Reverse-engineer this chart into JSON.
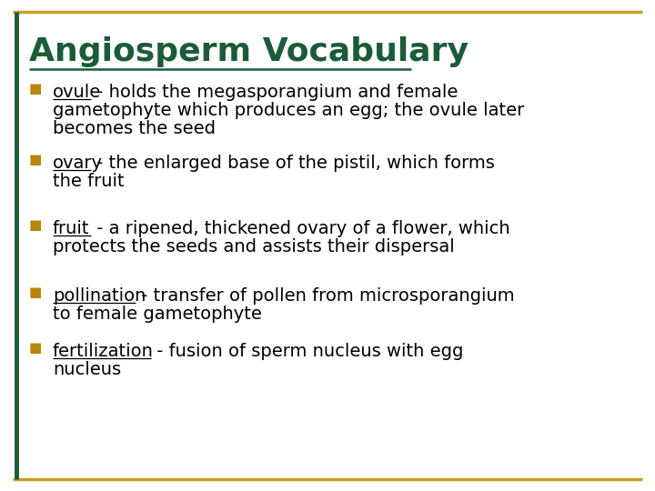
{
  "title": "Angiosperm Vocabulary",
  "title_color": "#1a5c38",
  "background_color": "#ffffff",
  "border_color": "#c8a020",
  "border_left_color": "#1a5c38",
  "bullet_color": "#b8860b",
  "text_color": "#000000",
  "bullet_char": "■",
  "items": [
    {
      "term": "ovule",
      "rest": " - holds the megasporangium and female\ngametophyte which produces an egg; the ovule later\nbecomes the seed"
    },
    {
      "term": "ovary",
      "rest": " - the enlarged base of the pistil, which forms\nthe fruit"
    },
    {
      "term": "fruit",
      "rest": " - a ripened, thickened ovary of a flower, which\nprotects the seeds and assists their dispersal"
    },
    {
      "term": "pollination",
      "rest": " - transfer of pollen from microsporangium\nto female gametophyte"
    },
    {
      "term": "fertilization",
      "rest": " - fusion of sperm nucleus with egg\nnucleus"
    }
  ],
  "title_fontsize": 26,
  "body_fontsize": 14,
  "bullet_fontsize": 11
}
